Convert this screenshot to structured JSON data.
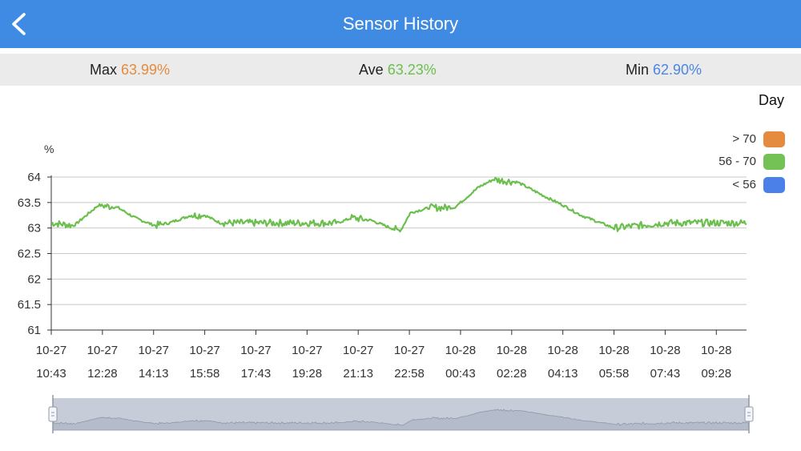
{
  "header": {
    "title": "Sensor History",
    "back_icon": "chevron-left-icon",
    "color": "#3f8ae3"
  },
  "stats": {
    "max": {
      "label": "Max",
      "value": "63.99%",
      "color": "#e58b3f"
    },
    "ave": {
      "label": "Ave",
      "value": "63.23%",
      "color": "#6bbf4d"
    },
    "min": {
      "label": "Min",
      "value": "62.90%",
      "color": "#4a86e4"
    }
  },
  "range_selector": {
    "label": "Day"
  },
  "legend": [
    {
      "label": "> 70",
      "color": "#e58b3f"
    },
    {
      "label": "56 - 70",
      "color": "#74c256"
    },
    {
      "label": "< 56",
      "color": "#4a80e8"
    }
  ],
  "chart_data": {
    "type": "line",
    "ylabel": "%",
    "ylim": [
      61,
      64
    ],
    "yticks": [
      "64",
      "63.5",
      "63",
      "62.5",
      "62",
      "61.5",
      "61"
    ],
    "xlim": [
      "10-27 10:43",
      "10-28 10:30"
    ],
    "xticks": [
      {
        "date": "10-27",
        "time": "10:43"
      },
      {
        "date": "10-27",
        "time": "12:28"
      },
      {
        "date": "10-27",
        "time": "14:13"
      },
      {
        "date": "10-27",
        "time": "15:58"
      },
      {
        "date": "10-27",
        "time": "17:43"
      },
      {
        "date": "10-27",
        "time": "19:28"
      },
      {
        "date": "10-27",
        "time": "21:13"
      },
      {
        "date": "10-27",
        "time": "22:58"
      },
      {
        "date": "10-28",
        "time": "00:43"
      },
      {
        "date": "10-28",
        "time": "02:28"
      },
      {
        "date": "10-28",
        "time": "04:13"
      },
      {
        "date": "10-28",
        "time": "05:58"
      },
      {
        "date": "10-28",
        "time": "07:43"
      },
      {
        "date": "10-28",
        "time": "09:28"
      }
    ],
    "grid": true,
    "line_color": "#6bbf4d",
    "series": [
      {
        "x": [
          "10-27 10:43",
          "10-27 11:30",
          "10-27 12:20",
          "10-27 13:00",
          "10-27 13:35",
          "10-27 14:15",
          "10-27 14:45",
          "10-27 15:30",
          "10-27 15:58",
          "10-27 16:30",
          "10-27 17:43",
          "10-27 19:28",
          "10-27 20:30",
          "10-27 21:00",
          "10-27 21:40",
          "10-27 22:20",
          "10-27 22:40",
          "10-27 23:00",
          "10-27 23:20",
          "10-27 23:40",
          "10-28 00:30",
          "10-28 00:43",
          "10-28 01:20",
          "10-28 01:50",
          "10-28 02:40",
          "10-28 03:10",
          "10-28 03:40",
          "10-28 04:13",
          "10-28 04:50",
          "10-28 05:58",
          "10-28 07:43",
          "10-28 09:28",
          "10-28 10:30"
        ],
        "y": [
          63.1,
          63.05,
          63.45,
          63.4,
          63.2,
          63.05,
          63.1,
          63.25,
          63.25,
          63.1,
          63.1,
          63.1,
          63.1,
          63.2,
          63.15,
          63.0,
          62.95,
          63.3,
          63.35,
          63.4,
          63.4,
          63.5,
          63.8,
          63.95,
          63.9,
          63.75,
          63.6,
          63.45,
          63.25,
          63.0,
          63.1,
          63.1,
          63.1
        ],
        "noise": 0.07
      }
    ]
  },
  "navigator": {
    "fill": "#c6ccd8",
    "handle_left_icon": "drag-handle-icon",
    "handle_right_icon": "drag-handle-icon"
  }
}
